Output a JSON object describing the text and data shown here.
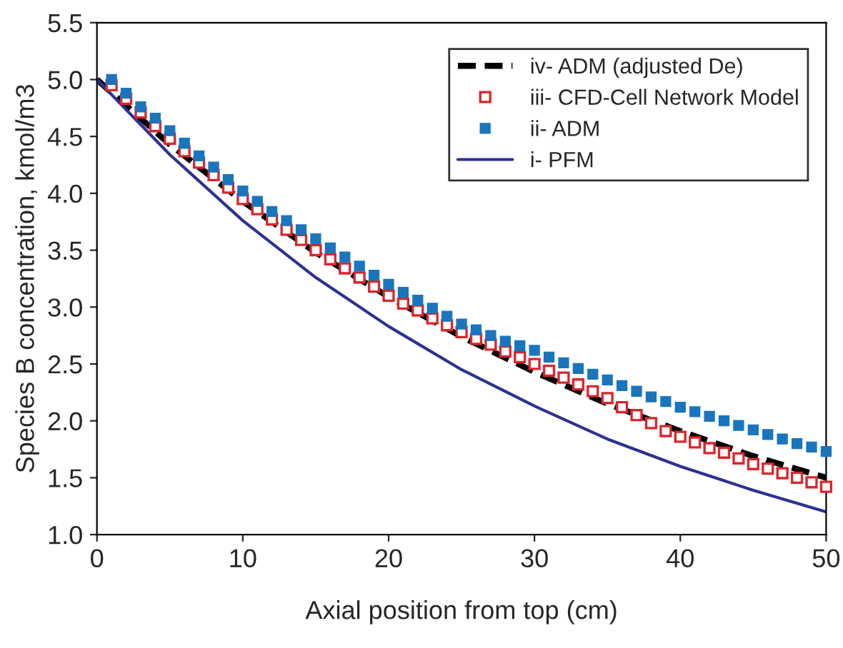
{
  "chart_data": {
    "type": "line",
    "xlabel": "Axial position from top (cm)",
    "ylabel": "Species B concentration, kmol/m3",
    "xlim": [
      0,
      50
    ],
    "ylim": [
      1.0,
      5.5
    ],
    "xticks": [
      0,
      10,
      20,
      30,
      40,
      50
    ],
    "yticks": [
      {
        "value": 1.0,
        "label": "1.0"
      },
      {
        "value": 1.5,
        "label": "1.5"
      },
      {
        "value": 2.0,
        "label": "2.0"
      },
      {
        "value": 2.5,
        "label": "2.5"
      },
      {
        "value": 3.0,
        "label": "3.0"
      },
      {
        "value": 3.5,
        "label": "3.5"
      },
      {
        "value": 4.0,
        "label": "4.0"
      },
      {
        "value": 4.5,
        "label": "4.5"
      },
      {
        "value": 5.0,
        "label": "5.0"
      },
      {
        "value": 5.5,
        "label": "5.5"
      }
    ],
    "grid": false,
    "legend": "top right",
    "series": [
      {
        "name": "iv- ADM (adjusted De)",
        "line_style": "dashed",
        "marker": "none",
        "color": "#000000",
        "x": [
          0,
          5,
          10,
          15,
          20,
          25,
          30,
          35,
          40,
          45,
          50
        ],
        "values": [
          5.0,
          4.43,
          3.93,
          3.48,
          3.09,
          2.74,
          2.43,
          2.15,
          1.91,
          1.69,
          1.5
        ]
      },
      {
        "name": "iii- CFD-Cell Network Model",
        "type": "scatter",
        "marker": "square",
        "color": "#d9262c",
        "x": [
          1,
          2,
          3,
          4,
          5,
          6,
          7,
          8,
          9,
          10,
          11,
          12,
          13,
          14,
          15,
          16,
          17,
          18,
          19,
          20,
          21,
          22,
          23,
          24,
          25,
          26,
          27,
          28,
          29,
          30,
          31,
          32,
          33,
          34,
          35,
          36,
          37,
          38,
          39,
          40,
          41,
          42,
          43,
          44,
          45,
          46,
          47,
          48,
          49,
          50
        ],
        "values": [
          4.95,
          4.83,
          4.71,
          4.59,
          4.48,
          4.37,
          4.27,
          4.16,
          4.05,
          3.95,
          3.86,
          3.77,
          3.68,
          3.59,
          3.5,
          3.42,
          3.34,
          3.26,
          3.18,
          3.1,
          3.03,
          2.97,
          2.9,
          2.84,
          2.78,
          2.72,
          2.67,
          2.61,
          2.56,
          2.5,
          2.44,
          2.38,
          2.32,
          2.26,
          2.2,
          2.12,
          2.05,
          1.98,
          1.91,
          1.86,
          1.81,
          1.76,
          1.72,
          1.67,
          1.62,
          1.58,
          1.54,
          1.5,
          1.46,
          1.42
        ]
      },
      {
        "name": "ii- ADM",
        "type": "scatter",
        "marker": "square",
        "color": "#1b75bc",
        "x": [
          1,
          2,
          3,
          4,
          5,
          6,
          7,
          8,
          9,
          10,
          11,
          12,
          13,
          14,
          15,
          16,
          17,
          18,
          19,
          20,
          21,
          22,
          23,
          24,
          25,
          26,
          27,
          28,
          29,
          30,
          31,
          32,
          33,
          34,
          35,
          36,
          37,
          38,
          39,
          40,
          41,
          42,
          43,
          44,
          45,
          46,
          47,
          48,
          49,
          50
        ],
        "values": [
          5.0,
          4.88,
          4.76,
          4.66,
          4.55,
          4.44,
          4.33,
          4.23,
          4.12,
          4.02,
          3.93,
          3.84,
          3.76,
          3.68,
          3.6,
          3.52,
          3.44,
          3.36,
          3.28,
          3.2,
          3.13,
          3.06,
          2.99,
          2.92,
          2.85,
          2.8,
          2.75,
          2.7,
          2.66,
          2.62,
          2.56,
          2.51,
          2.46,
          2.41,
          2.36,
          2.31,
          2.26,
          2.21,
          2.17,
          2.12,
          2.08,
          2.04,
          2.0,
          1.96,
          1.92,
          1.88,
          1.84,
          1.8,
          1.77,
          1.73
        ]
      },
      {
        "name": "i- PFM",
        "line_style": "solid",
        "marker": "none",
        "color": "#2e3192",
        "x": [
          0,
          5,
          10,
          15,
          20,
          25,
          30,
          35,
          40,
          45,
          50
        ],
        "values": [
          5.0,
          4.34,
          3.76,
          3.26,
          2.83,
          2.45,
          2.13,
          1.84,
          1.6,
          1.39,
          1.2
        ]
      }
    ]
  }
}
